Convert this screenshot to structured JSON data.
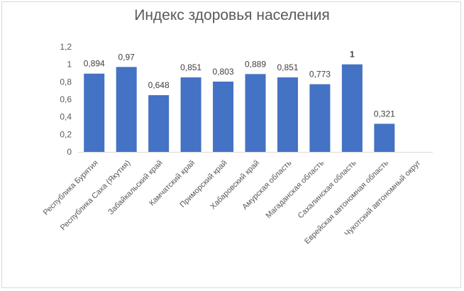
{
  "chart_data": {
    "type": "bar",
    "title": "Индекс здоровья населения",
    "xlabel": "",
    "ylabel": "",
    "ylim": [
      0,
      1.2
    ],
    "yticks": [
      0,
      0.2,
      0.4,
      0.6,
      0.8,
      1,
      1.2
    ],
    "ytick_labels": [
      "0",
      "0,2",
      "0,4",
      "0,6",
      "0,8",
      "1",
      "1,2"
    ],
    "grid": false,
    "legend": "none",
    "bar_color": "#4472c4",
    "categories": [
      "Республика Бурятия",
      "Республика Саха (Якутия)",
      "Забайкальский край",
      "Камчатский край",
      "Приморский край",
      "Хабаровский край",
      "Амурская область",
      "Магаданская область",
      "Сахалинская область",
      "Еврейская автономная область",
      "Чукотский автономный округ"
    ],
    "values": [
      0.894,
      0.97,
      0.648,
      0.851,
      0.803,
      0.889,
      0.851,
      0.773,
      1,
      0.321,
      null
    ],
    "data_labels": [
      "0,894",
      "0,97",
      "0,648",
      "0,851",
      "0,803",
      "0,889",
      "0,851",
      "0,773",
      "1",
      "0,321",
      ""
    ]
  }
}
